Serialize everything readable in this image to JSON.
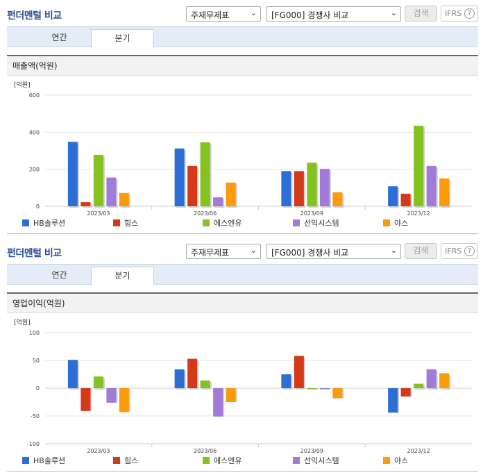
{
  "sections": [
    {
      "title": "펀더멘털 비교",
      "select1": "주재무제표",
      "select2": "[FG000] 경쟁사 비교",
      "search_label": "검색",
      "ifrs_label": "IFRS",
      "tabs": [
        "연간",
        "분기"
      ],
      "active_tab": "분기",
      "panel_title": "매출액(억원)"
    },
    {
      "title": "펀더멘털 비교",
      "select1": "주재무제표",
      "select2": "[FG000] 경쟁사 비교",
      "search_label": "검색",
      "ifrs_label": "IFRS",
      "tabs": [
        "연간",
        "분기"
      ],
      "active_tab": "분기",
      "panel_title": "영업이익(억원)"
    }
  ],
  "chart_data": [
    {
      "type": "bar",
      "unit_label": "[억원]",
      "categories": [
        "2023/03",
        "2023/06",
        "2023/09",
        "2023/12"
      ],
      "ylim": [
        0,
        600
      ],
      "yticks": [
        0,
        200,
        400,
        600
      ],
      "grid": true,
      "legend_position": "bottom",
      "series": [
        {
          "name": "HB솔루션",
          "color": "#2b6fd6",
          "values": [
            348,
            312,
            190,
            108
          ]
        },
        {
          "name": "힘스",
          "color": "#d43a1a",
          "values": [
            22,
            218,
            190,
            68
          ]
        },
        {
          "name": "에스엔유",
          "color": "#84c21f",
          "values": [
            278,
            345,
            235,
            435
          ]
        },
        {
          "name": "선익시스템",
          "color": "#a27ad8",
          "values": [
            155,
            48,
            202,
            218
          ]
        },
        {
          "name": "야스",
          "color": "#fb9b0a",
          "values": [
            72,
            128,
            75,
            150
          ]
        }
      ]
    },
    {
      "type": "bar",
      "unit_label": "[억원]",
      "categories": [
        "2023/03",
        "2023/06",
        "2023/09",
        "2023/12"
      ],
      "ylim": [
        -100,
        100
      ],
      "yticks": [
        -100,
        -50,
        0,
        50,
        100
      ],
      "grid": true,
      "legend_position": "bottom",
      "series": [
        {
          "name": "HB솔루션",
          "color": "#2b6fd6",
          "values": [
            51,
            34,
            25,
            -44
          ]
        },
        {
          "name": "힘스",
          "color": "#d43a1a",
          "values": [
            -41,
            53,
            58,
            -15
          ]
        },
        {
          "name": "에스엔유",
          "color": "#84c21f",
          "values": [
            21,
            14,
            -2,
            8
          ]
        },
        {
          "name": "선익시스템",
          "color": "#a27ad8",
          "values": [
            -26,
            -51,
            -2,
            34
          ]
        },
        {
          "name": "야스",
          "color": "#fb9b0a",
          "values": [
            -43,
            -25,
            -18,
            27
          ]
        }
      ]
    }
  ]
}
